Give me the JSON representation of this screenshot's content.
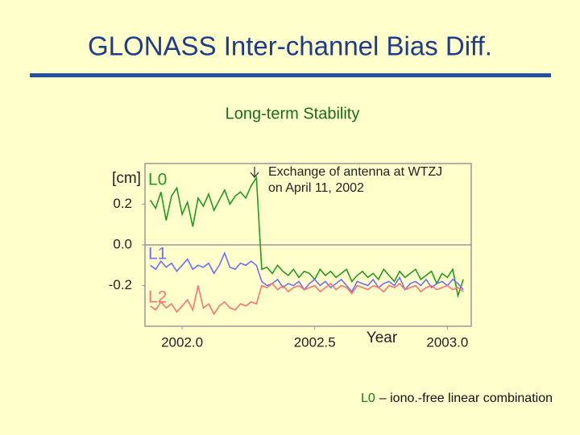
{
  "slide_title": "GLONASS Inter-channel Bias Diff.",
  "footnote": {
    "term": "L0",
    "text": "– iono.-free linear combination"
  },
  "chart_data": {
    "type": "line",
    "title": "Long-term Stability",
    "y_label": "[cm]",
    "x_label": "Year",
    "annotation": [
      "Exchange of antenna at WTZJ",
      "on April 11, 2002"
    ],
    "xlim": [
      2001.86,
      2003.09
    ],
    "ylim": [
      -0.4,
      0.4
    ],
    "xticks": [
      {
        "value": 2002,
        "label": "2002.0"
      },
      {
        "value": 2002.5,
        "label": "2002.5"
      },
      {
        "value": 2003,
        "label": "2003.0"
      }
    ],
    "yticks": [
      0.2,
      {
        "value": 0,
        "label": "0.0"
      },
      -0.2
    ],
    "x": [
      2001.88,
      2001.9,
      2001.92,
      2001.94,
      2001.96,
      2001.98,
      2002,
      2002.02,
      2002.04,
      2002.06,
      2002.08,
      2002.1,
      2002.12,
      2002.14,
      2002.16,
      2002.18,
      2002.2,
      2002.22,
      2002.24,
      2002.26,
      2002.28,
      2002.3,
      2002.32,
      2002.34,
      2002.36,
      2002.38,
      2002.4,
      2002.42,
      2002.44,
      2002.46,
      2002.48,
      2002.5,
      2002.52,
      2002.54,
      2002.56,
      2002.58,
      2002.6,
      2002.62,
      2002.64,
      2002.66,
      2002.68,
      2002.7,
      2002.72,
      2002.74,
      2002.76,
      2002.78,
      2002.8,
      2002.82,
      2002.84,
      2002.86,
      2002.88,
      2002.9,
      2002.92,
      2002.94,
      2002.96,
      2002.98,
      2003,
      2003.02,
      2003.04,
      2003.06
    ],
    "series": [
      {
        "name": "L0",
        "color": "#229922",
        "values": [
          0.22,
          0.18,
          0.26,
          0.12,
          0.24,
          0.28,
          0.15,
          0.21,
          0.09,
          0.23,
          0.19,
          0.25,
          0.17,
          0.22,
          0.27,
          0.2,
          0.24,
          0.26,
          0.23,
          0.29,
          0.33,
          -0.12,
          -0.11,
          -0.14,
          -0.1,
          -0.13,
          -0.15,
          -0.12,
          -0.16,
          -0.13,
          -0.14,
          -0.17,
          -0.12,
          -0.15,
          -0.13,
          -0.16,
          -0.14,
          -0.12,
          -0.18,
          -0.15,
          -0.13,
          -0.16,
          -0.14,
          -0.17,
          -0.12,
          -0.15,
          -0.18,
          -0.13,
          -0.16,
          -0.14,
          -0.12,
          -0.17,
          -0.15,
          -0.13,
          -0.19,
          -0.14,
          -0.16,
          -0.12,
          -0.25,
          -0.17
        ]
      },
      {
        "name": "L1",
        "color": "#6f6fff",
        "values": [
          -0.1,
          -0.12,
          -0.08,
          -0.11,
          -0.09,
          -0.13,
          -0.1,
          -0.07,
          -0.12,
          -0.1,
          -0.11,
          -0.09,
          -0.14,
          -0.1,
          -0.04,
          -0.11,
          -0.12,
          -0.09,
          -0.1,
          -0.08,
          -0.1,
          -0.18,
          -0.2,
          -0.19,
          -0.17,
          -0.21,
          -0.19,
          -0.2,
          -0.18,
          -0.22,
          -0.19,
          -0.17,
          -0.2,
          -0.18,
          -0.21,
          -0.19,
          -0.17,
          -0.2,
          -0.23,
          -0.18,
          -0.19,
          -0.2,
          -0.17,
          -0.21,
          -0.19,
          -0.18,
          -0.2,
          -0.16,
          -0.22,
          -0.19,
          -0.18,
          -0.2,
          -0.17,
          -0.21,
          -0.19,
          -0.18,
          -0.2,
          -0.17,
          -0.19,
          -0.22
        ]
      },
      {
        "name": "L2",
        "color": "#ff7373",
        "values": [
          -0.3,
          -0.32,
          -0.28,
          -0.31,
          -0.29,
          -0.33,
          -0.3,
          -0.27,
          -0.32,
          -0.2,
          -0.31,
          -0.29,
          -0.34,
          -0.3,
          -0.28,
          -0.31,
          -0.32,
          -0.29,
          -0.3,
          -0.28,
          -0.29,
          -0.2,
          -0.21,
          -0.19,
          -0.22,
          -0.2,
          -0.23,
          -0.21,
          -0.2,
          -0.22,
          -0.21,
          -0.2,
          -0.23,
          -0.21,
          -0.19,
          -0.22,
          -0.2,
          -0.21,
          -0.24,
          -0.2,
          -0.21,
          -0.22,
          -0.2,
          -0.21,
          -0.23,
          -0.2,
          -0.21,
          -0.19,
          -0.22,
          -0.21,
          -0.2,
          -0.23,
          -0.21,
          -0.2,
          -0.22,
          -0.21,
          -0.2,
          -0.22,
          -0.21,
          -0.23
        ]
      }
    ]
  }
}
